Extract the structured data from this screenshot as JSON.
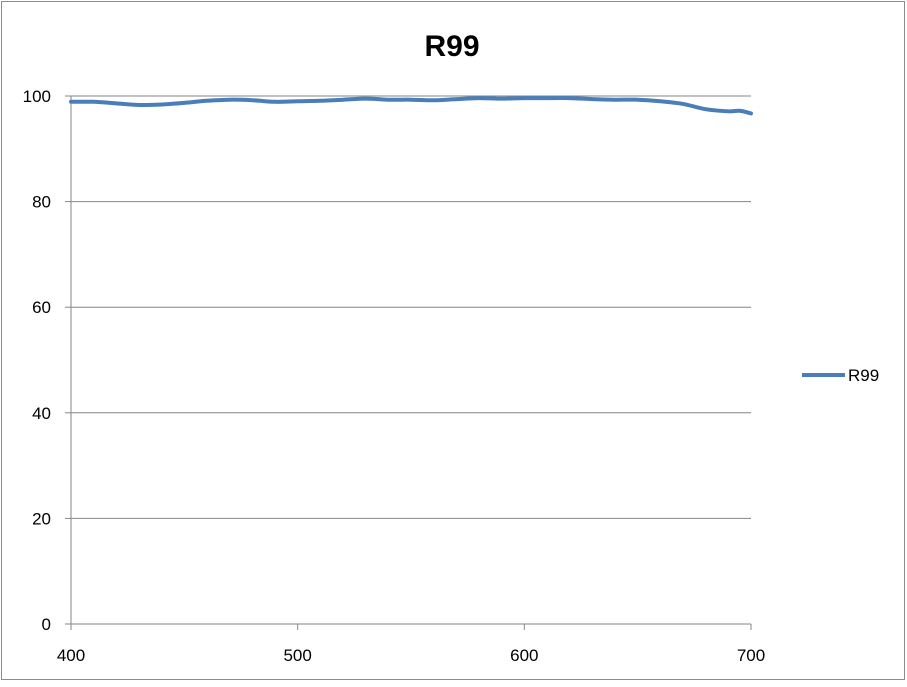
{
  "chart_data": {
    "type": "line",
    "title": "R99",
    "xlabel": "",
    "ylabel": "",
    "xlim": [
      400,
      700
    ],
    "ylim": [
      0,
      100
    ],
    "x_ticks": [
      400,
      500,
      600,
      700
    ],
    "y_ticks": [
      0,
      20,
      40,
      60,
      80,
      100
    ],
    "grid": "horizontal",
    "legend_position": "right",
    "series": [
      {
        "name": "R99",
        "color": "#4a7ebb",
        "x": [
          400,
          410,
          420,
          430,
          440,
          450,
          460,
          470,
          480,
          490,
          500,
          510,
          520,
          530,
          540,
          550,
          560,
          570,
          580,
          590,
          600,
          610,
          620,
          630,
          640,
          650,
          660,
          670,
          680,
          690,
          695,
          700
        ],
        "y": [
          98.9,
          98.9,
          98.6,
          98.3,
          98.4,
          98.7,
          99.1,
          99.3,
          99.2,
          98.9,
          99.0,
          99.1,
          99.3,
          99.5,
          99.3,
          99.3,
          99.2,
          99.4,
          99.6,
          99.5,
          99.6,
          99.6,
          99.6,
          99.4,
          99.3,
          99.3,
          99.0,
          98.5,
          97.5,
          97.1,
          97.2,
          96.7
        ]
      }
    ]
  }
}
